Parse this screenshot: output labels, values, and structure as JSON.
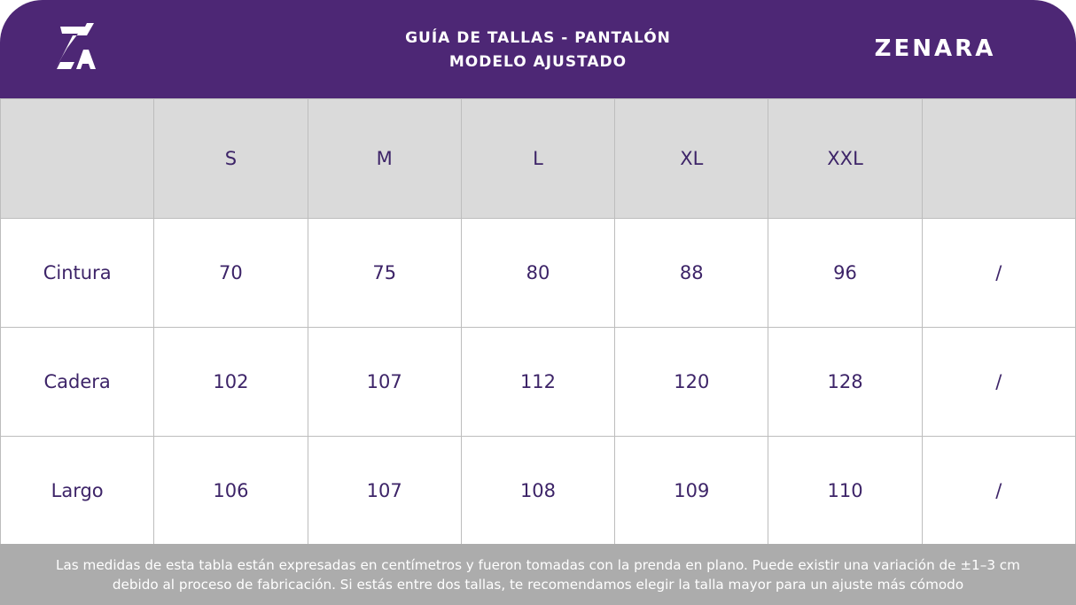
{
  "header": {
    "logo_text": "ZA",
    "title_line1": "GUÍA DE TALLAS - PANTALÓN",
    "title_line2": "MODELO AJUSTADO",
    "brand": "ZENARA"
  },
  "colors": {
    "header_bg": "#4d2775",
    "header_row_bg": "#dadada",
    "text": "#3d2468",
    "footer_bg": "#acacac",
    "grid": "#bdbdbd"
  },
  "table": {
    "columns": [
      "",
      "S",
      "M",
      "L",
      "XL",
      "XXL",
      ""
    ],
    "rows": [
      {
        "label": "Cintura",
        "values": [
          "70",
          "75",
          "80",
          "88",
          "96",
          "/"
        ]
      },
      {
        "label": "Cadera",
        "values": [
          "102",
          "107",
          "112",
          "120",
          "128",
          "/"
        ]
      },
      {
        "label": "Largo",
        "values": [
          "106",
          "107",
          "108",
          "109",
          "110",
          "/"
        ]
      }
    ]
  },
  "footer": {
    "line1": "Las medidas de esta tabla están expresadas en centímetros y fueron tomadas con la prenda en plano. Puede existir una variación de ±1–3 cm",
    "line2": "debido al proceso de fabricación. Si estás entre dos tallas, te recomendamos elegir la talla mayor para un ajuste más cómodo"
  }
}
